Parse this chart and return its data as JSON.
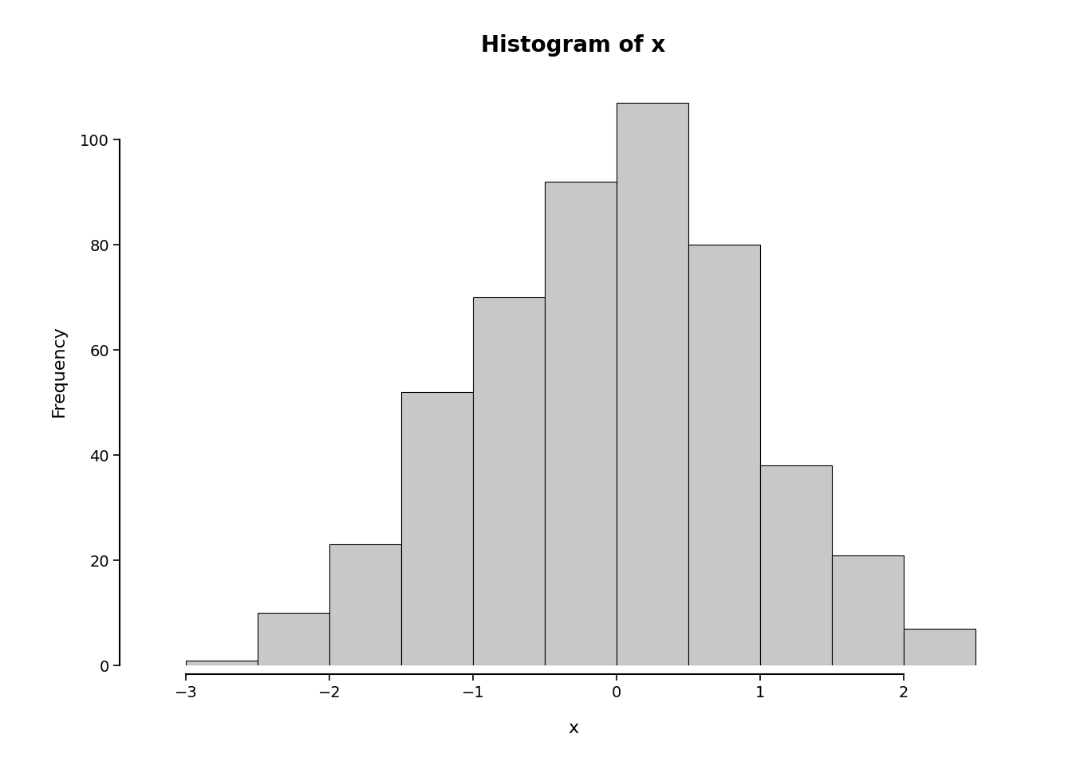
{
  "title": "Histogram of x",
  "xlabel": "x",
  "ylabel": "Frequency",
  "bar_color": "#c8c8c8",
  "bar_edge_color": "#000000",
  "bar_edge_width": 0.8,
  "background_color": "#ffffff",
  "bin_edges": [
    -3.0,
    -2.5,
    -2.0,
    -1.5,
    -1.0,
    -0.5,
    0.0,
    0.5,
    1.0,
    1.5,
    2.0,
    2.5
  ],
  "frequencies": [
    1,
    10,
    23,
    52,
    70,
    92,
    107,
    80,
    38,
    21,
    7
  ],
  "ylim": [
    0,
    112
  ],
  "yticks": [
    0,
    20,
    40,
    60,
    80,
    100
  ],
  "xticks": [
    -3,
    -2,
    -1,
    0,
    1,
    2
  ],
  "xlim": [
    -3.4,
    2.8
  ],
  "title_fontsize": 20,
  "title_fontweight": "bold",
  "axis_label_fontsize": 16,
  "tick_fontsize": 14,
  "spine_linewidth": 1.5
}
